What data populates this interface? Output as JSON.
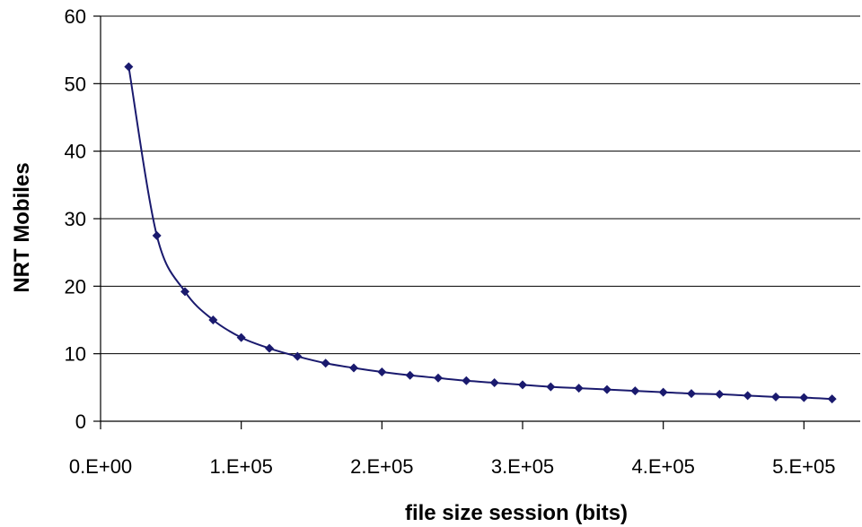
{
  "chart_data": {
    "type": "line",
    "xlabel": "file size session (bits)",
    "ylabel": "NRT Mobiles",
    "xlim": [
      0,
      540000
    ],
    "ylim": [
      0,
      60
    ],
    "x_ticks": [
      0,
      100000,
      200000,
      300000,
      400000,
      500000
    ],
    "x_tick_labels": [
      "0.E+00",
      "1.E+05",
      "2.E+05",
      "3.E+05",
      "4.E+05",
      "5.E+05"
    ],
    "y_ticks": [
      0,
      10,
      20,
      30,
      40,
      50,
      60
    ],
    "y_tick_labels": [
      "0",
      "10",
      "20",
      "30",
      "40",
      "50",
      "60"
    ],
    "grid": "horizontal",
    "legend": "none",
    "colors": {
      "series": "#1a1a6e"
    },
    "series": [
      {
        "x": [
          20000,
          40000,
          60000,
          80000,
          100000,
          120000,
          140000,
          160000,
          180000,
          200000,
          220000,
          240000,
          260000,
          280000,
          300000,
          320000,
          340000,
          360000,
          380000,
          400000,
          420000,
          440000,
          460000,
          480000,
          500000,
          520000
        ],
        "values": [
          52.5,
          27.5,
          19.2,
          15.0,
          12.4,
          10.8,
          9.6,
          8.6,
          7.9,
          7.3,
          6.8,
          6.4,
          6.0,
          5.7,
          5.4,
          5.1,
          4.9,
          4.7,
          4.5,
          4.3,
          4.1,
          4.0,
          3.8,
          3.6,
          3.5,
          3.3
        ]
      }
    ]
  }
}
